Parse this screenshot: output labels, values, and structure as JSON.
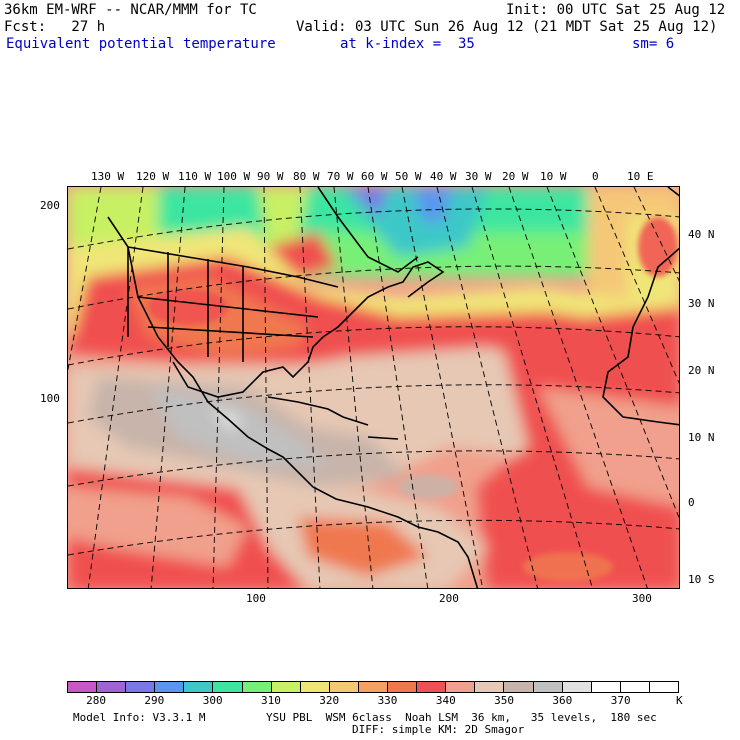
{
  "header": {
    "model": "36km EM-WRF -- NCAR/MMM for TC",
    "init": "Init: 00 UTC Sat 25 Aug 12",
    "fcst": "Fcst:   27 h",
    "valid": "Valid: 03 UTC Sun 26 Aug 12 (21 MDT Sat 25 Aug 12)",
    "field": "Equivalent potential temperature",
    "level": "at k-index =  35",
    "smooth": "sm= 6"
  },
  "axes": {
    "top_lon": [
      "130 W",
      "120 W",
      "110 W",
      "100 W",
      "90 W",
      "80 W",
      "70 W",
      "60 W",
      "50 W",
      "40 W",
      "30 W",
      "20 W",
      "10 W",
      "0",
      "10 E"
    ],
    "right_lat": [
      "40 N",
      "30 N",
      "20 N",
      "10 N",
      "0",
      "10 S"
    ],
    "left_grid": [
      "200",
      "100"
    ],
    "bottom_grid": [
      "100",
      "200",
      "300"
    ]
  },
  "colorbar": {
    "colors": [
      "#c857c8",
      "#a064d2",
      "#7878e6",
      "#5a96f0",
      "#3cc8c8",
      "#3ce6a0",
      "#78f078",
      "#c8f064",
      "#f0e678",
      "#f5c878",
      "#f5a064",
      "#f07850",
      "#f05050",
      "#f0a08c",
      "#e6c8b4",
      "#c8b4aa",
      "#c0c0c0",
      "#e1e1e1",
      "#ffffff",
      "#ffffff",
      "#ffffff"
    ],
    "labels": [
      "280",
      "290",
      "300",
      "310",
      "320",
      "330",
      "340",
      "350",
      "360",
      "370"
    ],
    "unit": "K"
  },
  "footer": {
    "info": "Model Info: V3.3.1 M",
    "phys1": "YSU PBL  WSM 6class  Noah LSM  36 km,   35 levels,  180 sec",
    "phys2": "DIFF: simple KM: 2D Smagor"
  }
}
